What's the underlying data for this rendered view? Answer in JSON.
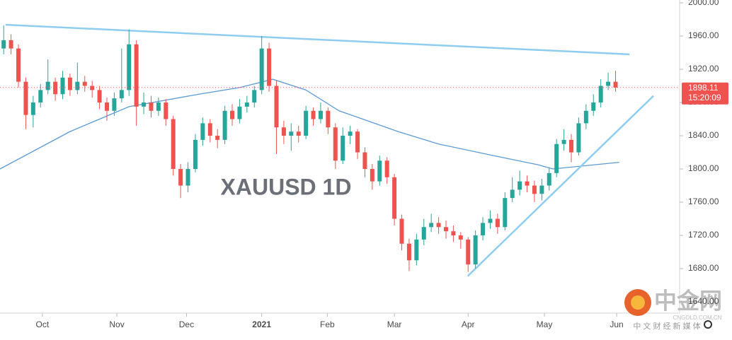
{
  "chart_data": {
    "type": "candlestick",
    "watermark": "XAUUSD 1D",
    "up_color": "#26a69a",
    "down_color": "#ef5350",
    "xlim": [
      0,
      184
    ],
    "ylim": [
      1626.4,
      2003.4
    ],
    "xticks": [
      {
        "value": 11.5,
        "label": "Oct"
      },
      {
        "value": 31.7,
        "label": "Nov"
      },
      {
        "value": 50.6,
        "label": "Dec"
      },
      {
        "value": 71,
        "label": "2021"
      },
      {
        "value": 88.8,
        "label": "Feb"
      },
      {
        "value": 107,
        "label": "Mar"
      },
      {
        "value": 127,
        "label": "Apr"
      },
      {
        "value": 147.7,
        "label": "May"
      },
      {
        "value": 167.3,
        "label": "Jun"
      }
    ],
    "yticks": [
      {
        "value": 2000,
        "label": "2000.00"
      },
      {
        "value": 1960,
        "label": "1960.00"
      },
      {
        "value": 1920,
        "label": "1920.00"
      },
      {
        "value": 1880,
        "label": "1880.00"
      },
      {
        "value": 1840,
        "label": "1840.00"
      },
      {
        "value": 1800,
        "label": "1800.00"
      },
      {
        "value": 1760,
        "label": "1760.00"
      },
      {
        "value": 1720,
        "label": "1720.00"
      },
      {
        "value": 1680,
        "label": "1680.00"
      },
      {
        "value": 1640,
        "label": "1640.00"
      }
    ],
    "x": [
      1,
      3,
      5,
      7,
      9,
      11,
      13,
      15,
      17,
      19,
      21,
      23,
      25,
      27,
      29,
      31,
      33,
      35,
      37,
      39,
      41,
      43,
      45,
      47,
      49,
      51,
      53,
      55,
      57,
      59,
      61,
      63,
      65,
      67,
      69,
      71,
      73,
      75,
      77,
      79,
      81,
      83,
      85,
      87,
      89,
      91,
      93,
      95,
      97,
      99,
      101,
      103,
      105,
      107,
      109,
      111,
      113,
      115,
      117,
      119,
      121,
      123,
      125,
      127,
      129,
      131,
      133,
      135,
      137,
      139,
      141,
      143,
      145,
      147,
      149,
      151,
      153,
      155,
      157,
      159,
      161,
      163,
      165,
      167
    ],
    "open": [
      1945,
      1955,
      1945,
      1905,
      1865,
      1880,
      1895,
      1905,
      1890,
      1910,
      1895,
      1905,
      1900,
      1895,
      1880,
      1870,
      1885,
      1895,
      1950,
      1875,
      1880,
      1870,
      1880,
      1860,
      1800,
      1780,
      1800,
      1835,
      1855,
      1840,
      1835,
      1870,
      1860,
      1875,
      1880,
      1895,
      1945,
      1900,
      1850,
      1840,
      1845,
      1840,
      1870,
      1860,
      1870,
      1850,
      1810,
      1840,
      1845,
      1820,
      1800,
      1785,
      1810,
      1790,
      1740,
      1710,
      1690,
      1715,
      1730,
      1735,
      1730,
      1725,
      1720,
      1715,
      1685,
      1720,
      1735,
      1740,
      1730,
      1765,
      1775,
      1785,
      1780,
      1770,
      1780,
      1795,
      1830,
      1835,
      1820,
      1855,
      1870,
      1880,
      1900,
      1905
    ],
    "close": [
      1955,
      1945,
      1905,
      1865,
      1880,
      1895,
      1905,
      1890,
      1910,
      1895,
      1905,
      1900,
      1895,
      1880,
      1870,
      1885,
      1895,
      1950,
      1875,
      1880,
      1870,
      1880,
      1860,
      1800,
      1780,
      1800,
      1835,
      1855,
      1840,
      1835,
      1870,
      1860,
      1875,
      1880,
      1895,
      1945,
      1900,
      1850,
      1840,
      1845,
      1840,
      1870,
      1860,
      1870,
      1850,
      1810,
      1840,
      1845,
      1820,
      1800,
      1785,
      1810,
      1790,
      1740,
      1710,
      1690,
      1715,
      1730,
      1735,
      1730,
      1725,
      1720,
      1715,
      1685,
      1720,
      1735,
      1740,
      1730,
      1765,
      1775,
      1785,
      1780,
      1770,
      1780,
      1795,
      1830,
      1835,
      1820,
      1855,
      1870,
      1880,
      1900,
      1905,
      1898
    ],
    "high": [
      1973,
      1962,
      1950,
      1910,
      1888,
      1902,
      1932,
      1910,
      1918,
      1915,
      1928,
      1912,
      1906,
      1900,
      1886,
      1892,
      1945,
      1968,
      1955,
      1892,
      1888,
      1886,
      1884,
      1864,
      1806,
      1808,
      1842,
      1862,
      1860,
      1848,
      1876,
      1878,
      1884,
      1888,
      1900,
      1960,
      1952,
      1906,
      1858,
      1855,
      1852,
      1876,
      1874,
      1880,
      1874,
      1855,
      1850,
      1852,
      1848,
      1826,
      1806,
      1816,
      1814,
      1794,
      1745,
      1716,
      1722,
      1740,
      1746,
      1742,
      1738,
      1732,
      1724,
      1718,
      1726,
      1742,
      1750,
      1746,
      1772,
      1790,
      1798,
      1792,
      1786,
      1788,
      1802,
      1836,
      1848,
      1842,
      1862,
      1878,
      1890,
      1908,
      1916,
      1918
    ],
    "low": [
      1938,
      1938,
      1898,
      1848,
      1850,
      1874,
      1890,
      1882,
      1884,
      1888,
      1890,
      1893,
      1886,
      1872,
      1858,
      1864,
      1880,
      1888,
      1852,
      1866,
      1862,
      1864,
      1852,
      1792,
      1765,
      1772,
      1796,
      1828,
      1832,
      1825,
      1830,
      1852,
      1855,
      1868,
      1874,
      1890,
      1893,
      1818,
      1830,
      1822,
      1832,
      1836,
      1852,
      1855,
      1842,
      1800,
      1806,
      1830,
      1812,
      1790,
      1775,
      1780,
      1782,
      1732,
      1702,
      1677,
      1684,
      1708,
      1724,
      1722,
      1716,
      1712,
      1704,
      1676,
      1680,
      1714,
      1728,
      1722,
      1726,
      1760,
      1768,
      1772,
      1760,
      1762,
      1774,
      1790,
      1822,
      1808,
      1816,
      1848,
      1864,
      1874,
      1895,
      1893
    ],
    "moving_average": {
      "color": "#5b9bd5",
      "x": [
        0,
        19,
        35,
        54,
        65,
        74,
        83,
        92,
        108,
        119,
        135,
        146,
        150,
        168
      ],
      "values": [
        1800,
        1845,
        1875,
        1890,
        1898,
        1908,
        1895,
        1870,
        1845,
        1830,
        1815,
        1805,
        1800,
        1808
      ]
    },
    "trend_lines": [
      {
        "color": "#8ecdf0",
        "x": [
          1.5,
          170.8
        ],
        "values": [
          1973.6,
          1938
        ]
      },
      {
        "color": "#8ecdf0",
        "x": [
          126.9,
          177.3
        ],
        "values": [
          1671,
          1888
        ]
      }
    ],
    "last_price": 1898.11,
    "countdown": "15:20:09",
    "logo": {
      "name": "中金网",
      "domain": "CNGOLD.COM.CN",
      "slogan": "中 文 财 经 新 媒 体"
    }
  }
}
